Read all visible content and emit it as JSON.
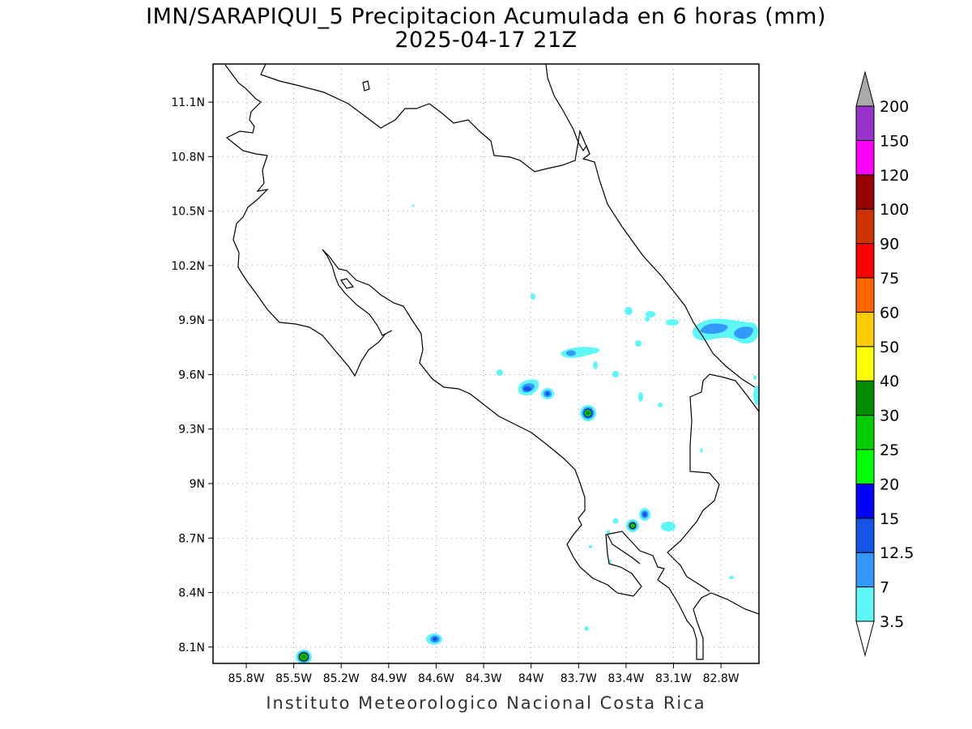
{
  "title": "IMN/SARAPIQUI_5 Precipitacion Acumulada en 6 horas (mm)",
  "subtitle": "2025-04-17 21Z",
  "credit": "Instituto Meteorologico Nacional Costa Rica",
  "map": {
    "lon_range": [
      -86.01,
      -82.56
    ],
    "lat_range": [
      8.01,
      11.31
    ],
    "lon_ticks": [
      "85.8W",
      "85.5W",
      "85.2W",
      "84.9W",
      "84.6W",
      "84.3W",
      "84W",
      "83.7W",
      "83.4W",
      "83.1W",
      "82.8W"
    ],
    "lon_values": [
      -85.8,
      -85.5,
      -85.2,
      -84.9,
      -84.6,
      -84.3,
      -84.0,
      -83.7,
      -83.4,
      -83.1,
      -82.8
    ],
    "lat_ticks": [
      "8.1N",
      "8.4N",
      "8.7N",
      "9N",
      "9.3N",
      "9.6N",
      "9.9N",
      "10.2N",
      "10.5N",
      "10.8N",
      "11.1N"
    ],
    "lat_values": [
      8.1,
      8.4,
      8.7,
      9.0,
      9.3,
      9.6,
      9.9,
      10.2,
      10.5,
      10.8,
      11.1
    ],
    "grid": "dotted"
  },
  "colorbar": {
    "labels": [
      "3.5",
      "7",
      "12.5",
      "15",
      "20",
      "25",
      "30",
      "40",
      "50",
      "60",
      "75",
      "90",
      "100",
      "120",
      "150",
      "200"
    ],
    "colors": [
      "#5ef7f7",
      "#3399ff",
      "#1455e6",
      "#0000ff",
      "#00ff00",
      "#00cc00",
      "#008c00",
      "#ffff00",
      "#ffcc00",
      "#ff6600",
      "#ff0000",
      "#cc3300",
      "#990000",
      "#ff00ff",
      "#9933cc",
      "#f2f2f2",
      "#aaaaaa"
    ],
    "min_cap_color": "#ffffff",
    "max_cap_color": "#aaaaaa"
  },
  "precip_cells": [
    {
      "lon": -83.7,
      "lat": 9.72,
      "max": 7
    },
    {
      "lon": -83.97,
      "lat": 9.52,
      "max": 15
    },
    {
      "lon": -83.85,
      "lat": 9.48,
      "max": 12.5
    },
    {
      "lon": -83.6,
      "lat": 9.38,
      "max": 30
    },
    {
      "lon": -82.75,
      "lat": 9.84,
      "max": 12.5
    },
    {
      "lon": -82.64,
      "lat": 9.81,
      "max": 12.5
    },
    {
      "lon": -83.31,
      "lat": 8.76,
      "max": 25
    },
    {
      "lon": -83.24,
      "lat": 8.82,
      "max": 12.5
    },
    {
      "lon": -85.46,
      "lat": 8.05,
      "max": 30
    },
    {
      "lon": -84.6,
      "lat": 8.14,
      "max": 12.5
    }
  ]
}
